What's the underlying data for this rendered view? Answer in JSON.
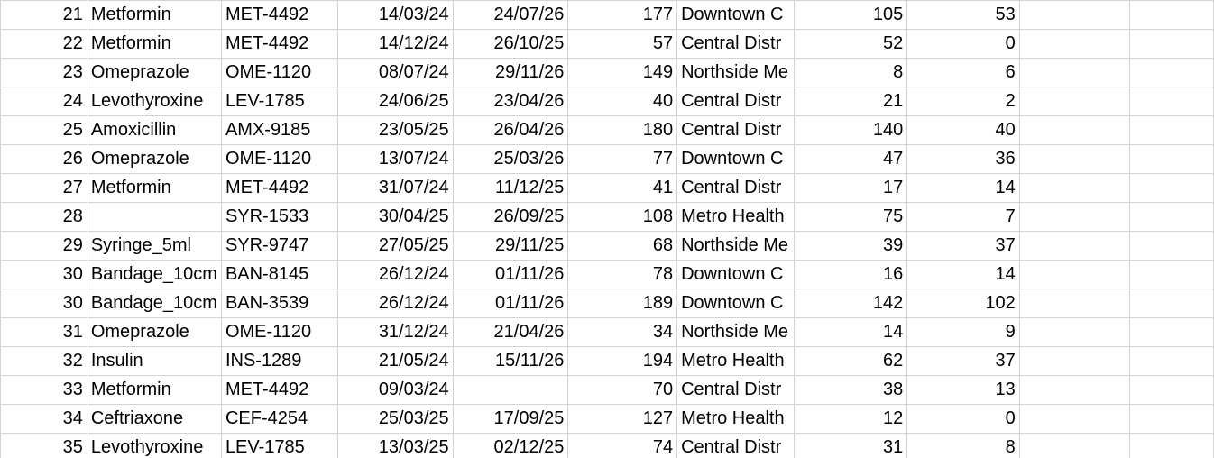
{
  "sheet": {
    "rows": [
      [
        "21",
        "Metformin",
        "MET-4492",
        "14/03/24",
        "24/07/26",
        "177",
        "Downtown C",
        "105",
        "53"
      ],
      [
        "22",
        "Metformin",
        "MET-4492",
        "14/12/24",
        "26/10/25",
        "57",
        "Central Distr",
        "52",
        "0"
      ],
      [
        "23",
        "Omeprazole",
        "OME-1120",
        "08/07/24",
        "29/11/26",
        "149",
        "Northside Me",
        "8",
        "6"
      ],
      [
        "24",
        "Levothyroxine",
        "LEV-1785",
        "24/06/25",
        "23/04/26",
        "40",
        "Central Distr",
        "21",
        "2"
      ],
      [
        "25",
        "Amoxicillin",
        "AMX-9185",
        "23/05/25",
        "26/04/26",
        "180",
        "Central Distr",
        "140",
        "40"
      ],
      [
        "26",
        "Omeprazole",
        "OME-1120",
        "13/07/24",
        "25/03/26",
        "77",
        "Downtown C",
        "47",
        "36"
      ],
      [
        "27",
        "Metformin",
        "MET-4492",
        "31/07/24",
        "11/12/25",
        "41",
        "Central Distr",
        "17",
        "14"
      ],
      [
        "28",
        "",
        "SYR-1533",
        "30/04/25",
        "26/09/25",
        "108",
        "Metro Health",
        "75",
        "7"
      ],
      [
        "29",
        "Syringe_5ml",
        "SYR-9747",
        "27/05/25",
        "29/11/25",
        "68",
        "Northside Me",
        "39",
        "37"
      ],
      [
        "30",
        "Bandage_10cm",
        "BAN-8145",
        "26/12/24",
        "01/11/26",
        "78",
        "Downtown C",
        "16",
        "14"
      ],
      [
        "30",
        "Bandage_10cm",
        "BAN-3539",
        "26/12/24",
        "01/11/26",
        "189",
        "Downtown C",
        "142",
        "102"
      ],
      [
        "31",
        "Omeprazole",
        "OME-1120",
        "31/12/24",
        "21/04/26",
        "34",
        "Northside Me",
        "14",
        "9"
      ],
      [
        "32",
        "Insulin",
        "INS-1289",
        "21/05/24",
        "15/11/26",
        "194",
        "Metro Health",
        "62",
        "37"
      ],
      [
        "33",
        "Metformin",
        "MET-4492",
        "09/03/24",
        "",
        "70",
        "Central Distr",
        "38",
        "13"
      ],
      [
        "34",
        "Ceftriaxone",
        "CEF-4254",
        "25/03/25",
        "17/09/25",
        "127",
        "Metro Health",
        "12",
        "0"
      ],
      [
        "35",
        "Levothyroxine",
        "LEV-1785",
        "13/03/25",
        "02/12/25",
        "74",
        "Central Distr",
        "31",
        "8"
      ]
    ]
  }
}
